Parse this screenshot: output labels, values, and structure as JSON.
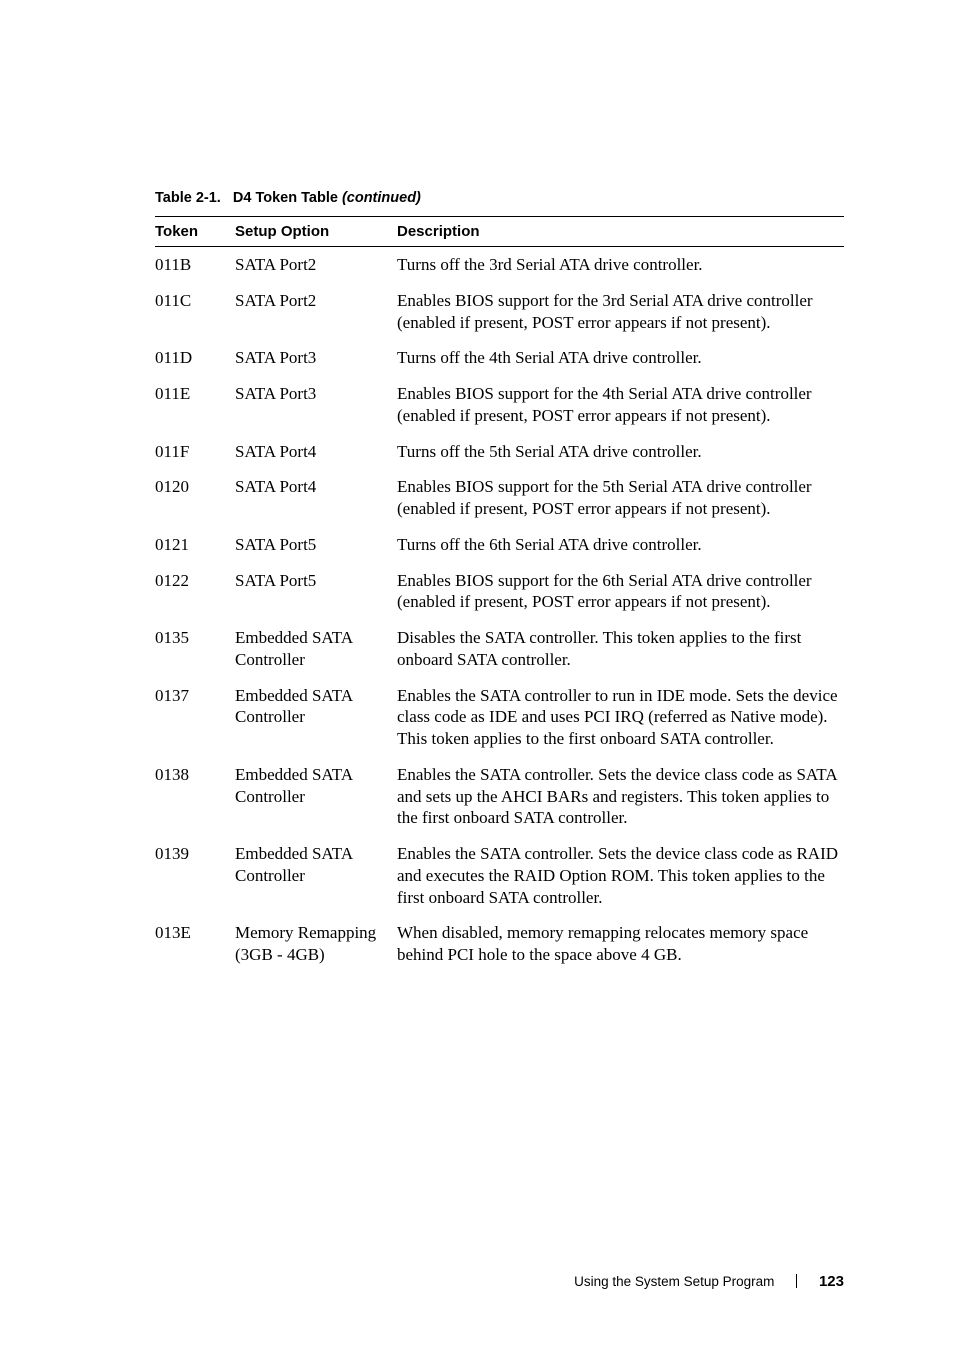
{
  "table_caption": {
    "label": "Table 2-1.",
    "title": "D4 Token Table",
    "continued": "(continued)"
  },
  "headers": {
    "token": "Token",
    "setup": "Setup Option",
    "description": "Description"
  },
  "rows": [
    {
      "token": "011B",
      "setup": "SATA Port2",
      "desc": "Turns off the 3rd Serial ATA drive controller."
    },
    {
      "token": "011C",
      "setup": "SATA Port2",
      "desc": "Enables BIOS support for the 3rd Serial ATA drive controller (enabled if present, POST error appears if not present)."
    },
    {
      "token": "011D",
      "setup": "SATA Port3",
      "desc": "Turns off the 4th Serial ATA drive controller."
    },
    {
      "token": "011E",
      "setup": "SATA Port3",
      "desc": "Enables BIOS support for the 4th Serial ATA drive controller (enabled if present, POST error appears if not present)."
    },
    {
      "token": "011F",
      "setup": "SATA Port4",
      "desc": "Turns off the 5th Serial ATA drive controller."
    },
    {
      "token": "0120",
      "setup": "SATA Port4",
      "desc": "Enables BIOS support for the 5th Serial ATA drive controller (enabled if present, POST error appears if not present)."
    },
    {
      "token": "0121",
      "setup": "SATA Port5",
      "desc": "Turns off the 6th Serial ATA drive controller."
    },
    {
      "token": "0122",
      "setup": "SATA Port5",
      "desc": "Enables BIOS support for the 6th Serial ATA drive controller (enabled if present, POST error appears if not present)."
    },
    {
      "token": "0135",
      "setup": "Embedded SATA Controller",
      "desc": "Disables the SATA controller. This token applies to the first onboard SATA controller."
    },
    {
      "token": "0137",
      "setup": "Embedded SATA Controller",
      "desc": "Enables the SATA controller to run in IDE mode. Sets the device class code as IDE and uses PCI IRQ (referred as Native mode). This token applies to the first onboard SATA controller."
    },
    {
      "token": "0138",
      "setup": "Embedded SATA Controller",
      "desc": "Enables the SATA controller. Sets the device class code as SATA and sets up the AHCI BARs and registers. This token applies to the first onboard SATA controller."
    },
    {
      "token": "0139",
      "setup": "Embedded SATA Controller",
      "desc": "Enables the SATA controller. Sets the device class code as RAID and executes the RAID Option ROM. This token applies to the first onboard SATA controller."
    },
    {
      "token": "013E",
      "setup": "Memory Remapping (3GB - 4GB)",
      "desc": "When disabled, memory remapping relocates memory space behind PCI hole to the space above 4 GB."
    }
  ],
  "footer": {
    "text": "Using the System Setup Program",
    "page": "123"
  }
}
